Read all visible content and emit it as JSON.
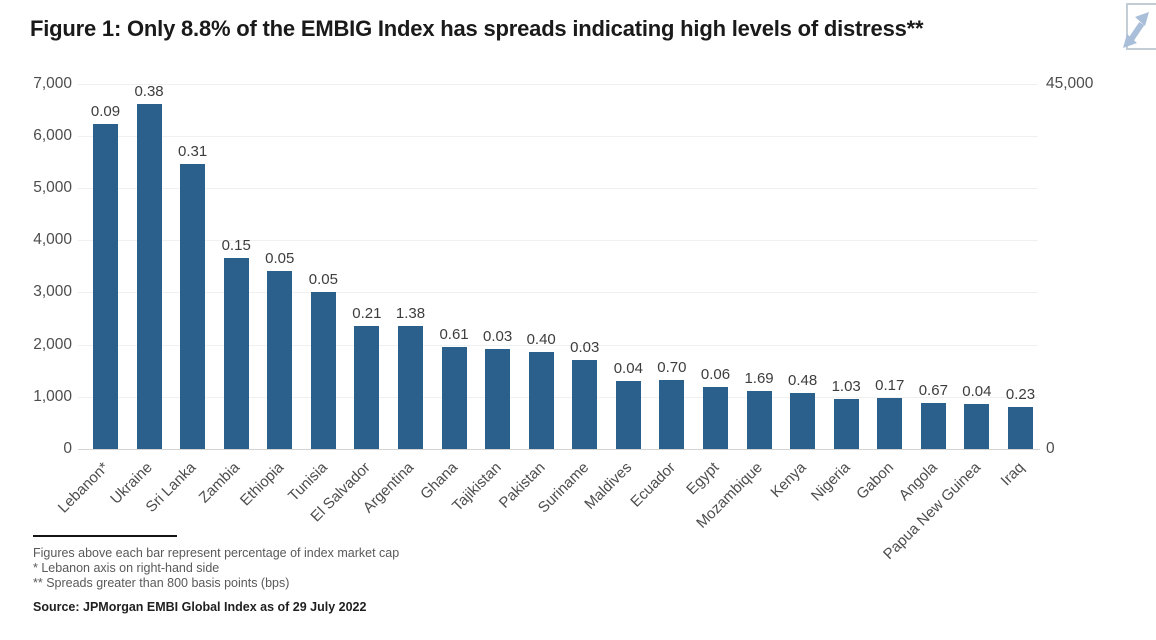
{
  "header": {
    "title": "Figure 1: Only 8.8% of the EMBIG Index has spreads indicating high levels of distress**",
    "expand_button_icon": "expand-diagonal-arrows"
  },
  "chart_data": {
    "type": "bar",
    "title": "Figure 1: Only 8.8% of the EMBIG Index has spreads indicating high levels of distress**",
    "categories": [
      "Lebanon*",
      "Ukraine",
      "Sri Lanka",
      "Zambia",
      "Ethiopia",
      "Tunisia",
      "El Salvador",
      "Argentina",
      "Ghana",
      "Tajikistan",
      "Pakistan",
      "Suriname",
      "Maldives",
      "Ecuador",
      "Egypt",
      "Mozambique",
      "Kenya",
      "Nigeria",
      "Gabon",
      "Angola",
      "Papua New Guinea",
      "Iraq"
    ],
    "values_spread_bps": [
      40000,
      6600,
      5450,
      3650,
      3400,
      3000,
      2360,
      2360,
      1950,
      1920,
      1860,
      1700,
      1300,
      1320,
      1190,
      1110,
      1070,
      960,
      980,
      880,
      860,
      800
    ],
    "value_axis": [
      "right",
      "left",
      "left",
      "left",
      "left",
      "left",
      "left",
      "left",
      "left",
      "left",
      "left",
      "left",
      "left",
      "left",
      "left",
      "left",
      "left",
      "left",
      "left",
      "left",
      "left",
      "left"
    ],
    "bar_labels_market_cap_pct": [
      "0.09",
      "0.38",
      "0.31",
      "0.15",
      "0.05",
      "0.05",
      "0.21",
      "1.38",
      "0.61",
      "0.03",
      "0.40",
      "0.03",
      "0.04",
      "0.70",
      "0.06",
      "1.69",
      "0.48",
      "1.03",
      "0.17",
      "0.67",
      "0.04",
      "0.23"
    ],
    "axes": {
      "left": {
        "min": 0,
        "max": 7000,
        "tick_values": [
          0,
          1000,
          2000,
          3000,
          4000,
          5000,
          6000,
          7000
        ],
        "tick_labels": [
          "0",
          "1,000",
          "2,000",
          "3,000",
          "4,000",
          "5,000",
          "6,000",
          "7,000"
        ]
      },
      "right": {
        "min": 0,
        "max": 45000,
        "tick_values": [
          0,
          45000
        ],
        "tick_labels": [
          "0",
          "45,000"
        ]
      }
    },
    "grid": "horizontal",
    "legend": "none",
    "bar_color": "#2B5F8C"
  },
  "footnotes": {
    "line1": "Figures above each bar represent percentage of index market cap",
    "line2": "* Lebanon axis on right-hand side",
    "line3": "** Spreads greater than 800 basis points (bps)"
  },
  "source": "Source: JPMorgan EMBI Global Index as of 29 July 2022",
  "colors": {
    "bar": "#2B5F8C",
    "title_text": "#1a1a1a",
    "axis_text": "#4d4d4d",
    "bar_label_text": "#3d3d3d",
    "footnote_text": "#595959",
    "gridline": "#f0f0f0",
    "axis_line": "#d4d4d4",
    "expand_icon": "#a9bed8",
    "expand_border": "#c3cdd6"
  }
}
